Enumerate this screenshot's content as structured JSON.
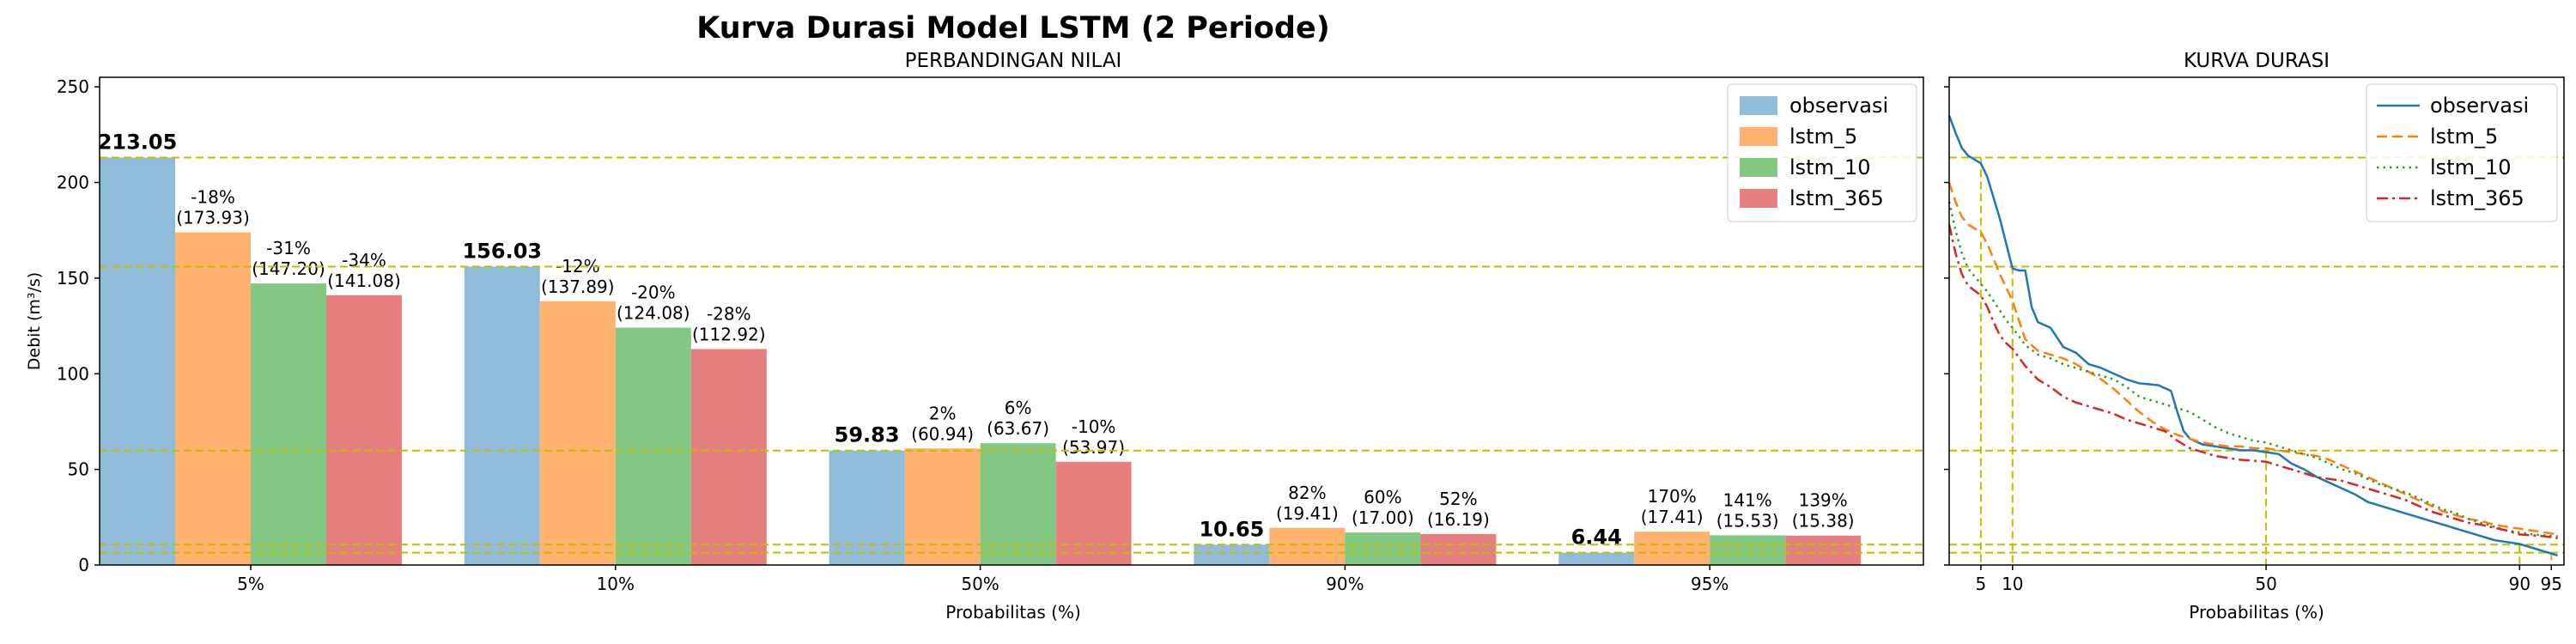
{
  "figure_title": "Kurva Durasi Model LSTM (2 Periode)",
  "chart_data": [
    {
      "type": "bar",
      "title": "PERBANDINGAN NILAI",
      "xlabel": "Probabilitas (%)",
      "ylabel": "Debit (m³/s)",
      "ylim": [
        0,
        255
      ],
      "yticks": [
        0,
        50,
        100,
        150,
        200,
        250
      ],
      "categories": [
        "5%",
        "10%",
        "50%",
        "90%",
        "95%"
      ],
      "series": [
        {
          "name": "observasi",
          "color": "#90bcda",
          "values": [
            213.05,
            156.03,
            59.83,
            10.65,
            6.44
          ]
        },
        {
          "name": "lstm_5",
          "color": "#ffb26e",
          "values": [
            173.93,
            137.89,
            60.94,
            19.41,
            17.41
          ]
        },
        {
          "name": "lstm_10",
          "color": "#82c882",
          "values": [
            147.2,
            124.08,
            63.67,
            17.0,
            15.53
          ]
        },
        {
          "name": "lstm_365",
          "color": "#e67f7f",
          "values": [
            141.08,
            112.92,
            53.97,
            16.19,
            15.38
          ]
        }
      ],
      "observed_labels": [
        "213.05",
        "156.03",
        "59.83",
        "10.65",
        "6.44"
      ],
      "model_labels": [
        [
          [
            "-18%",
            "(173.93)"
          ],
          [
            "-31%",
            "(147.20)"
          ],
          [
            "-34%",
            "(141.08)"
          ]
        ],
        [
          [
            "-12%",
            "(137.89)"
          ],
          [
            "-20%",
            "(124.08)"
          ],
          [
            "-28%",
            "(112.92)"
          ]
        ],
        [
          [
            "2%",
            "(60.94)"
          ],
          [
            "6%",
            "(63.67)"
          ],
          [
            "-10%",
            "(53.97)"
          ]
        ],
        [
          [
            "82%",
            "(19.41)"
          ],
          [
            "60%",
            "(17.00)"
          ],
          [
            "52%",
            "(16.19)"
          ]
        ],
        [
          [
            "170%",
            "(17.41)"
          ],
          [
            "141%",
            "(15.53)"
          ],
          [
            "139%",
            "(15.38)"
          ]
        ]
      ],
      "reference_lines": [
        213.05,
        156.03,
        59.83,
        10.65,
        6.44
      ],
      "reference_line_color": "#bfbf00",
      "legend_placement": "top-right",
      "grid": false
    },
    {
      "type": "line",
      "title": "KURVA DURASI",
      "xlabel": "Probabilitas (%)",
      "xlim": [
        0,
        97
      ],
      "ylim": [
        0,
        255
      ],
      "xticks": [
        5,
        10,
        50,
        90,
        95
      ],
      "reference_x": [
        5,
        10,
        50,
        90,
        95
      ],
      "reference_y": [
        213.05,
        156.03,
        59.83,
        10.65,
        6.44
      ],
      "reference_line_color": "#bfbf00",
      "series": [
        {
          "name": "observasi",
          "color": "#1f77b4",
          "dash": "solid",
          "points": [
            [
              0,
              235
            ],
            [
              1,
              226
            ],
            [
              2,
              218
            ],
            [
              3,
              214
            ],
            [
              5,
              210
            ],
            [
              6,
              203
            ],
            [
              7,
              192
            ],
            [
              8,
              181
            ],
            [
              9,
              168
            ],
            [
              10,
              155
            ],
            [
              11,
              154
            ],
            [
              12,
              154
            ],
            [
              13,
              135
            ],
            [
              14,
              127
            ],
            [
              16,
              124
            ],
            [
              18,
              114
            ],
            [
              20,
              111
            ],
            [
              22,
              105
            ],
            [
              24,
              103
            ],
            [
              26,
              100
            ],
            [
              28,
              97
            ],
            [
              30,
              95
            ],
            [
              33,
              94
            ],
            [
              35,
              91
            ],
            [
              36,
              80
            ],
            [
              37,
              70
            ],
            [
              38,
              66
            ],
            [
              40,
              63
            ],
            [
              42,
              62
            ],
            [
              44,
              61
            ],
            [
              46,
              60
            ],
            [
              48,
              60
            ],
            [
              50,
              59
            ],
            [
              52,
              58
            ],
            [
              54,
              53
            ],
            [
              56,
              50
            ],
            [
              58,
              46
            ],
            [
              60,
              43
            ],
            [
              62,
              40
            ],
            [
              64,
              37
            ],
            [
              66,
              33
            ],
            [
              68,
              31
            ],
            [
              70,
              29
            ],
            [
              72,
              27
            ],
            [
              74,
              25
            ],
            [
              76,
              23
            ],
            [
              78,
              21
            ],
            [
              80,
              19
            ],
            [
              82,
              17
            ],
            [
              84,
              15
            ],
            [
              86,
              13
            ],
            [
              88,
              12
            ],
            [
              90,
              11
            ],
            [
              92,
              9
            ],
            [
              94,
              7
            ],
            [
              96,
              5
            ]
          ]
        },
        {
          "name": "lstm_5",
          "color": "#ff7f0e",
          "dash": "dashed",
          "points": [
            [
              0,
              200
            ],
            [
              1,
              190
            ],
            [
              2,
              182
            ],
            [
              3,
              178
            ],
            [
              5,
              174
            ],
            [
              6,
              168
            ],
            [
              7,
              160
            ],
            [
              8,
              152
            ],
            [
              9,
              145
            ],
            [
              10,
              138
            ],
            [
              12,
              118
            ],
            [
              14,
              112
            ],
            [
              16,
              110
            ],
            [
              18,
              108
            ],
            [
              20,
              105
            ],
            [
              22,
              101
            ],
            [
              24,
              97
            ],
            [
              26,
              92
            ],
            [
              28,
              86
            ],
            [
              30,
              80
            ],
            [
              32,
              75
            ],
            [
              34,
              71
            ],
            [
              36,
              68
            ],
            [
              38,
              66
            ],
            [
              40,
              64
            ],
            [
              42,
              63
            ],
            [
              44,
              62
            ],
            [
              46,
              62
            ],
            [
              48,
              61
            ],
            [
              50,
              61
            ],
            [
              52,
              60
            ],
            [
              54,
              59
            ],
            [
              56,
              58
            ],
            [
              58,
              57
            ],
            [
              60,
              55
            ],
            [
              62,
              52
            ],
            [
              64,
              49
            ],
            [
              66,
              46
            ],
            [
              68,
              43
            ],
            [
              70,
              40
            ],
            [
              72,
              37
            ],
            [
              74,
              34
            ],
            [
              76,
              31
            ],
            [
              78,
              28
            ],
            [
              80,
              26
            ],
            [
              82,
              24
            ],
            [
              84,
              23
            ],
            [
              86,
              21
            ],
            [
              88,
              20
            ],
            [
              90,
              19
            ],
            [
              92,
              18
            ],
            [
              94,
              17
            ],
            [
              96,
              16
            ]
          ]
        },
        {
          "name": "lstm_10",
          "color": "#2ca02c",
          "dash": "dotted",
          "points": [
            [
              0,
              190
            ],
            [
              1,
              175
            ],
            [
              2,
              163
            ],
            [
              3,
              155
            ],
            [
              5,
              147
            ],
            [
              6,
              143
            ],
            [
              7,
              138
            ],
            [
              8,
              133
            ],
            [
              9,
              128
            ],
            [
              10,
              124
            ],
            [
              12,
              115
            ],
            [
              14,
              110
            ],
            [
              16,
              108
            ],
            [
              18,
              105
            ],
            [
              20,
              103
            ],
            [
              22,
              101
            ],
            [
              24,
              99
            ],
            [
              26,
              97
            ],
            [
              28,
              93
            ],
            [
              30,
              88
            ],
            [
              32,
              86
            ],
            [
              34,
              84
            ],
            [
              36,
              82
            ],
            [
              38,
              80
            ],
            [
              40,
              76
            ],
            [
              42,
              72
            ],
            [
              44,
              69
            ],
            [
              46,
              67
            ],
            [
              48,
              65
            ],
            [
              50,
              64
            ],
            [
              52,
              62
            ],
            [
              54,
              60
            ],
            [
              56,
              58
            ],
            [
              58,
              56
            ],
            [
              60,
              53
            ],
            [
              62,
              50
            ],
            [
              64,
              48
            ],
            [
              66,
              45
            ],
            [
              68,
              42
            ],
            [
              70,
              40
            ],
            [
              72,
              38
            ],
            [
              74,
              35
            ],
            [
              76,
              32
            ],
            [
              78,
              29
            ],
            [
              80,
              27
            ],
            [
              82,
              24
            ],
            [
              84,
              22
            ],
            [
              86,
              20
            ],
            [
              88,
              18
            ],
            [
              90,
              17
            ],
            [
              92,
              16
            ],
            [
              94,
              15.5
            ],
            [
              96,
              15
            ]
          ]
        },
        {
          "name": "lstm_365",
          "color": "#d62728",
          "dash": "dashdot",
          "points": [
            [
              0,
              178
            ],
            [
              1,
              163
            ],
            [
              2,
              152
            ],
            [
              3,
              146
            ],
            [
              5,
              141
            ],
            [
              6,
              135
            ],
            [
              7,
              127
            ],
            [
              8,
              120
            ],
            [
              9,
              116
            ],
            [
              10,
              113
            ],
            [
              12,
              104
            ],
            [
              14,
              97
            ],
            [
              16,
              93
            ],
            [
              18,
              88
            ],
            [
              20,
              85
            ],
            [
              22,
              83
            ],
            [
              24,
              81
            ],
            [
              26,
              79
            ],
            [
              28,
              76
            ],
            [
              30,
              74
            ],
            [
              32,
              72
            ],
            [
              34,
              70
            ],
            [
              36,
              65
            ],
            [
              38,
              61
            ],
            [
              40,
              59
            ],
            [
              42,
              57
            ],
            [
              44,
              56
            ],
            [
              46,
              55
            ],
            [
              48,
              54.5
            ],
            [
              50,
              54
            ],
            [
              52,
              52
            ],
            [
              54,
              50
            ],
            [
              56,
              48
            ],
            [
              58,
              46
            ],
            [
              60,
              45
            ],
            [
              62,
              44
            ],
            [
              64,
              42
            ],
            [
              66,
              40
            ],
            [
              68,
              38
            ],
            [
              70,
              36
            ],
            [
              72,
              34
            ],
            [
              74,
              31
            ],
            [
              76,
              28
            ],
            [
              78,
              26
            ],
            [
              80,
              24
            ],
            [
              82,
              22
            ],
            [
              84,
              21
            ],
            [
              86,
              19.5
            ],
            [
              88,
              18
            ],
            [
              90,
              16
            ],
            [
              92,
              15.5
            ],
            [
              94,
              15
            ],
            [
              96,
              14
            ]
          ]
        }
      ],
      "legend_placement": "top-right",
      "grid": false
    }
  ]
}
